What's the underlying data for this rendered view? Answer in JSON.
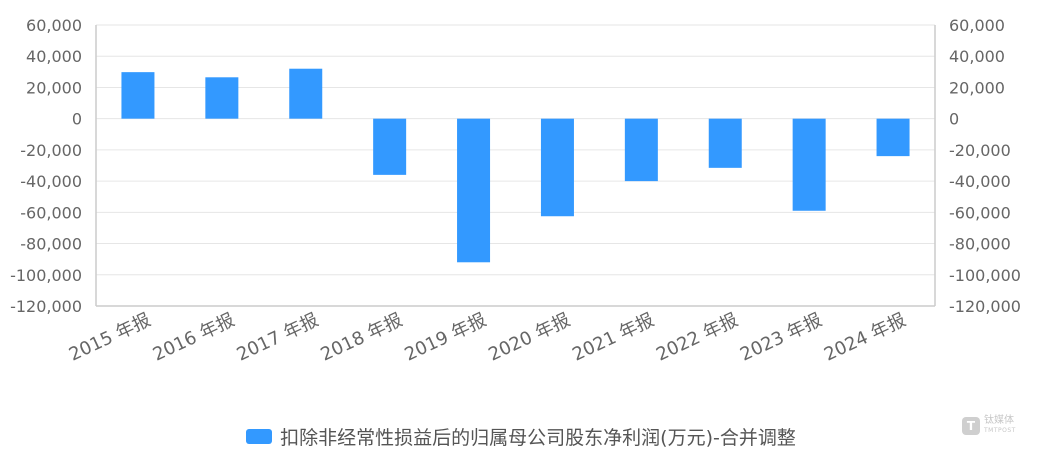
{
  "chart_data": {
    "type": "bar",
    "categories": [
      "2015 年报",
      "2016 年报",
      "2017 年报",
      "2018 年报",
      "2019 年报",
      "2020 年报",
      "2021 年报",
      "2022 年报",
      "2023 年报",
      "2024 年报"
    ],
    "series": [
      {
        "name": "扣除非经常性损益后的归属母公司股东净利润(万元)-合并调整",
        "values": [
          29800,
          26500,
          32000,
          -36000,
          -92000,
          -62500,
          -40000,
          -31500,
          -59000,
          -24000
        ],
        "color": "#3399ff"
      }
    ],
    "yticks": [
      "60,000",
      "40,000",
      "20,000",
      "0",
      "-20,000",
      "-40,000",
      "-60,000",
      "-80,000",
      "-100,000",
      "-120,000"
    ],
    "ylim": [
      -120000,
      60000
    ],
    "y_axis_right": true,
    "grid": true,
    "legend_position": "bottom"
  },
  "colors": {
    "bar": "#3399ff",
    "grid": "#e6e6e6",
    "axis": "#cccccc",
    "text": "#666666"
  },
  "watermark": {
    "icon": "T",
    "name": "钛媒体",
    "sub": "TMTPOST"
  }
}
